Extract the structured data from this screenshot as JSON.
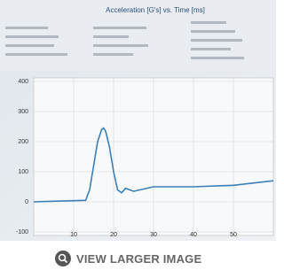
{
  "chart_data": {
    "type": "line",
    "title": "Acceleration [G's] vs. Time [ms]",
    "x": [
      0,
      5,
      10,
      13,
      14,
      15,
      16,
      17,
      17.5,
      18,
      19,
      20,
      21,
      22,
      23,
      25,
      30,
      40,
      50,
      60
    ],
    "series": [
      {
        "color": "#3b7fb8",
        "values": [
          0,
          2,
          4,
          5,
          40,
          120,
          200,
          240,
          245,
          235,
          180,
          100,
          40,
          30,
          45,
          35,
          50,
          50,
          55,
          70
        ]
      }
    ],
    "xlim": [
      0,
      60
    ],
    "xticks": [
      10,
      20,
      30,
      40,
      50
    ],
    "ylim": [
      -100,
      400
    ],
    "yticks": [
      400,
      300,
      200,
      100,
      0,
      -100
    ],
    "grid": true
  },
  "button": {
    "label": "VIEW LARGER IMAGE"
  }
}
